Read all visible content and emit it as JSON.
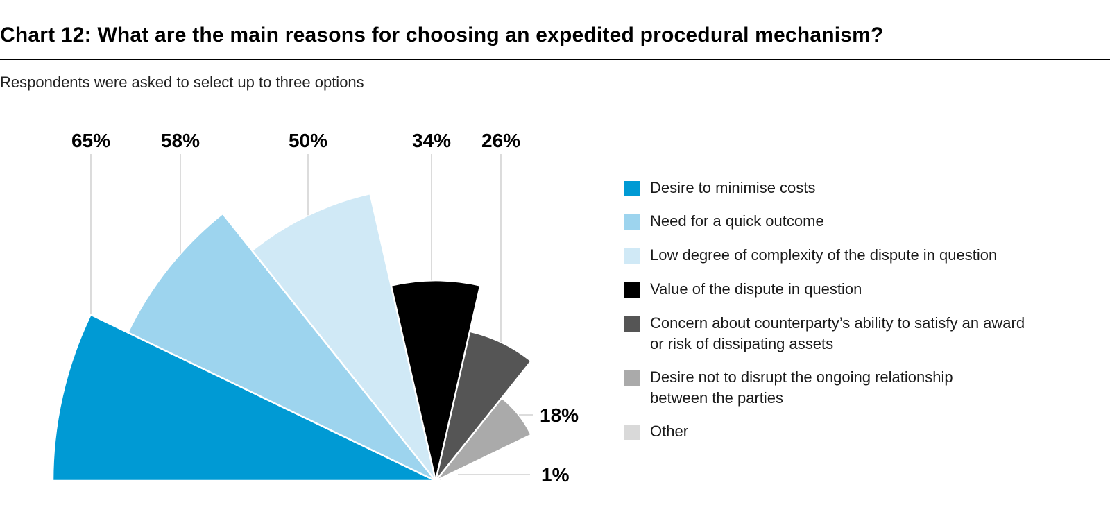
{
  "title": "Chart 12: What are the main reasons for choosing an expedited procedural mechanism?",
  "subtitle": "Respondents were asked to select up to three options",
  "chart_data": {
    "type": "pie",
    "variant": "polar-area (rose) segments",
    "title": "Chart 12: What are the main reasons for choosing an expedited procedural mechanism?",
    "subtitle": "Respondents were asked to select up to three options",
    "categories": [
      "Desire to minimise costs",
      "Need for a quick outcome",
      "Low degree of complexity of the dispute in question",
      "Value of the dispute in question",
      "Concern about counterparty’s ability to satisfy an award or risk of dissipating assets",
      "Desire not to disrupt the ongoing relationship between the parties",
      "Other"
    ],
    "values": [
      65,
      58,
      50,
      34,
      26,
      18,
      1
    ],
    "labels": [
      "65%",
      "58%",
      "50%",
      "34%",
      "26%",
      "18%",
      "1%"
    ],
    "unit": "%",
    "colors": [
      "#009ad4",
      "#9dd4ee",
      "#d0e9f6",
      "#000000",
      "#555555",
      "#aaaaaa",
      "#d9d9d9"
    ],
    "legend_position": "right"
  },
  "legend": {
    "items": [
      {
        "lines": [
          "Desire to minimise costs"
        ],
        "color": "#009ad4"
      },
      {
        "lines": [
          "Need for a quick outcome"
        ],
        "color": "#9dd4ee"
      },
      {
        "lines": [
          "Low degree of complexity of the dispute in question"
        ],
        "color": "#d0e9f6"
      },
      {
        "lines": [
          "Value of the dispute in question"
        ],
        "color": "#000000"
      },
      {
        "lines": [
          "Concern about counterparty’s ability to satisfy an award",
          "or risk of dissipating assets"
        ],
        "color": "#555555"
      },
      {
        "lines": [
          "Desire not to disrupt the ongoing relationship",
          "between the parties"
        ],
        "color": "#aaaaaa"
      },
      {
        "lines": [
          "Other"
        ],
        "color": "#d9d9d9"
      }
    ]
  }
}
